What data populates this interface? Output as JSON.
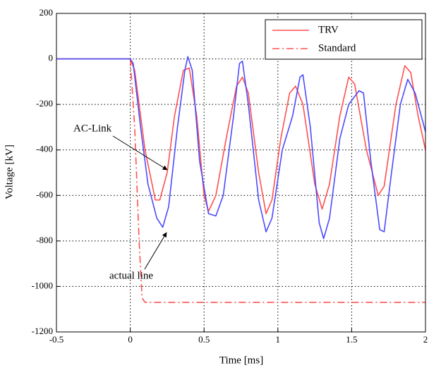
{
  "chart_data": {
    "type": "line",
    "xlabel": "Time [ms]",
    "ylabel": "Voltage [kV]",
    "xlim": [
      -0.5,
      2
    ],
    "ylim": [
      -1200,
      200
    ],
    "xticks": [
      -0.5,
      0,
      0.5,
      1,
      1.5,
      2
    ],
    "yticks": [
      200,
      0,
      -200,
      -400,
      -600,
      -800,
      -1000,
      -1200
    ],
    "grid": true,
    "legend": "upper right",
    "annotations": [
      "AC-Link",
      "actual line"
    ],
    "series": [
      {
        "name": "TRV",
        "color": "#ff5050",
        "dash": "solid",
        "x": [
          -0.5,
          0,
          0.03,
          0.1,
          0.17,
          0.2,
          0.25,
          0.3,
          0.36,
          0.4,
          0.45,
          0.5,
          0.53,
          0.58,
          0.65,
          0.72,
          0.76,
          0.8,
          0.87,
          0.92,
          0.96,
          1.02,
          1.08,
          1.12,
          1.17,
          1.25,
          1.3,
          1.35,
          1.42,
          1.48,
          1.52,
          1.6,
          1.68,
          1.72,
          1.8,
          1.86,
          1.9,
          1.95,
          2
        ],
        "values": [
          0,
          0,
          -50,
          -400,
          -620,
          -620,
          -500,
          -250,
          -50,
          -40,
          -250,
          -600,
          -670,
          -600,
          -350,
          -120,
          -80,
          -150,
          -500,
          -680,
          -620,
          -350,
          -150,
          -120,
          -200,
          -550,
          -660,
          -550,
          -250,
          -80,
          -110,
          -400,
          -600,
          -560,
          -200,
          -30,
          -60,
          -250,
          -400
        ]
      },
      {
        "name": "Standard",
        "color": "#ff5050",
        "dash": "dashdot",
        "x": [
          0,
          0.03,
          0.06,
          0.08,
          0.1,
          2
        ],
        "values": [
          0,
          -300,
          -800,
          -1050,
          -1070,
          -1070
        ]
      },
      {
        "color": "#4b4bff",
        "dash": "solid",
        "x": [
          -0.5,
          0,
          0.02,
          0.07,
          0.12,
          0.18,
          0.22,
          0.26,
          0.32,
          0.37,
          0.39,
          0.42,
          0.47,
          0.53,
          0.58,
          0.63,
          0.7,
          0.74,
          0.76,
          0.8,
          0.87,
          0.92,
          0.96,
          1.03,
          1.1,
          1.15,
          1.17,
          1.22,
          1.28,
          1.31,
          1.35,
          1.42,
          1.48,
          1.55,
          1.58,
          1.63,
          1.69,
          1.72,
          1.77,
          1.83,
          1.88,
          1.93,
          2
        ],
        "values": [
          0,
          0,
          -20,
          -300,
          -550,
          -700,
          -740,
          -650,
          -300,
          -50,
          10,
          -50,
          -450,
          -680,
          -690,
          -600,
          -250,
          -20,
          -10,
          -200,
          -620,
          -760,
          -700,
          -400,
          -250,
          -80,
          -70,
          -300,
          -720,
          -790,
          -700,
          -350,
          -200,
          -140,
          -150,
          -450,
          -750,
          -760,
          -500,
          -200,
          -90,
          -150,
          -320
        ]
      }
    ]
  }
}
